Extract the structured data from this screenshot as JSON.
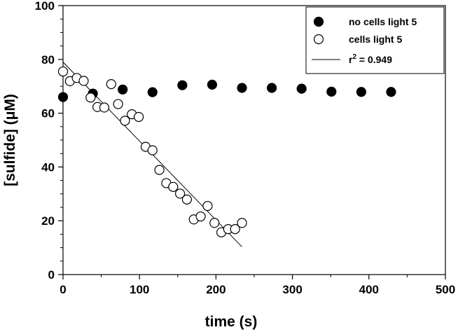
{
  "chart_data": {
    "type": "scatter",
    "title": "",
    "xlabel": "time (s)",
    "ylabel_main": "[sulfide] (",
    "ylabel_unit": "μM",
    "ylabel_close": ")",
    "xlim": [
      0,
      500
    ],
    "ylim": [
      0,
      100
    ],
    "xticks": [
      0,
      100,
      200,
      300,
      400,
      500
    ],
    "yticks": [
      0,
      20,
      40,
      60,
      80,
      100
    ],
    "xtick_labels": [
      "0",
      "100",
      "200",
      "300",
      "400",
      "500"
    ],
    "ytick_labels": [
      "0",
      "20",
      "40",
      "60",
      "80",
      "100"
    ],
    "grid": false,
    "legend_position": "top-right",
    "series": [
      {
        "name": "no cells light 5",
        "marker": "filled-circle",
        "color": "#000000",
        "x": [
          0,
          39,
          78,
          117,
          156,
          195,
          234,
          273,
          312,
          351,
          390,
          429
        ],
        "y": [
          66,
          67.3,
          68.8,
          67.8,
          70.4,
          70.6,
          69.4,
          69.4,
          69.1,
          68,
          67.9,
          67.9
        ]
      },
      {
        "name": "cells light 5",
        "marker": "open-circle",
        "color": "#000000",
        "x": [
          0,
          9,
          18,
          27,
          36,
          45,
          54,
          63,
          72,
          81,
          90,
          99,
          108,
          117,
          126,
          135,
          144,
          153,
          162,
          171,
          180,
          189,
          198,
          207,
          216,
          225,
          234
        ],
        "y": [
          75.5,
          71.9,
          73.1,
          72,
          65.8,
          62.3,
          62.1,
          70.8,
          63.4,
          57.2,
          59.6,
          58.6,
          47.5,
          46.2,
          38.9,
          34,
          32.6,
          30.1,
          27.9,
          20.5,
          21.6,
          25.5,
          19.2,
          15.7,
          16.9,
          16.9,
          19.2
        ]
      }
    ],
    "fit_line": {
      "name_prefix": "r",
      "name_sup": "2",
      "name_suffix": " = 0.949",
      "x": [
        0,
        234
      ],
      "y": [
        79,
        10.3
      ]
    }
  }
}
